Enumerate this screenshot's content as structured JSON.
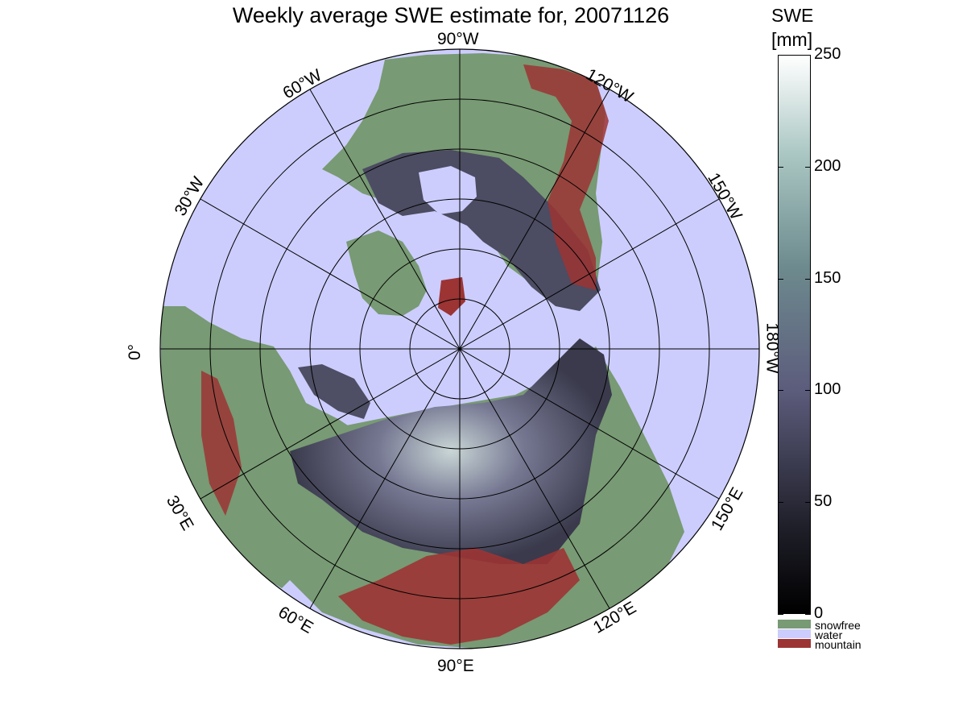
{
  "title": "Weekly average SWE estimate for, 20071126",
  "longitude_labels": {
    "w90": "90°W",
    "w120": "120°W",
    "w150": "150°W",
    "w180": "180°W",
    "e150": "150°E",
    "e120": "120°E",
    "e90": "90°E",
    "e60": "60°E",
    "e30": "30°E",
    "zero": "0°",
    "w30": "30°W",
    "w60": "60°W"
  },
  "colorbar": {
    "title_line1": "SWE",
    "title_line2": "[mm]",
    "ticks": [
      "250",
      "200",
      "150",
      "100",
      "50",
      "0"
    ],
    "categories": [
      {
        "label": "snowfree",
        "color": "#789a74"
      },
      {
        "label": "water",
        "color": "#cccdfd"
      },
      {
        "label": "mountain",
        "color": "#9c3434"
      }
    ]
  },
  "colors": {
    "water": "#cccdfd",
    "snowfree": "#789a74",
    "mountain": "#9c3434",
    "swe_low": "#0a0a0e",
    "swe_mid": "#5a5a78",
    "swe_high": "#f6fbfa"
  }
}
